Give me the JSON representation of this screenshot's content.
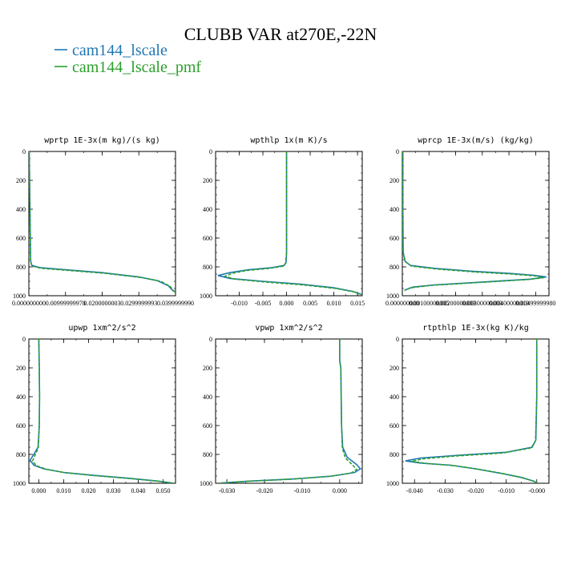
{
  "figure": {
    "title": "CLUBB VAR at270E,-22N",
    "legend": [
      {
        "name": "cam144_lscale",
        "color": "#1f77b4",
        "style": "solid"
      },
      {
        "name": "cam144_lscale_pmf",
        "color": "#2ca02c",
        "style": "dashed"
      }
    ]
  },
  "chart_data": [
    {
      "type": "line",
      "title": "wprtp  1E-3x(m kg)/(s kg)",
      "xlim": [
        0,
        0.04
      ],
      "ylim": [
        0,
        1000
      ],
      "y_inverted": true,
      "xticks": [
        0,
        0.01,
        0.02,
        0.03,
        0.04
      ],
      "xtick_labels": [
        "0.000000000",
        "0.00999999978",
        "0.0200000003",
        "0.0299999993",
        "0.0399999990"
      ],
      "yticks": [
        0,
        200,
        400,
        600,
        800,
        1000
      ],
      "ytick_labels": [
        "0",
        "200",
        "400",
        "600",
        "800",
        "1000"
      ],
      "series": [
        {
          "name": "cam144_lscale",
          "points": [
            [
              0.0001,
              0
            ],
            [
              0.0002,
              200
            ],
            [
              0.0003,
              400
            ],
            [
              0.0004,
              600
            ],
            [
              0.0005,
              760
            ],
            [
              0.0008,
              790
            ],
            [
              0.003,
              805
            ],
            [
              0.01,
              820
            ],
            [
              0.02,
              840
            ],
            [
              0.03,
              870
            ],
            [
              0.035,
              895
            ],
            [
              0.038,
              930
            ],
            [
              0.0395,
              970
            ]
          ]
        },
        {
          "name": "cam144_lscale_pmf",
          "points": [
            [
              0.0001,
              0
            ],
            [
              0.0002,
              200
            ],
            [
              0.0003,
              400
            ],
            [
              0.0004,
              600
            ],
            [
              0.0005,
              765
            ],
            [
              0.0009,
              795
            ],
            [
              0.0035,
              810
            ],
            [
              0.011,
              825
            ],
            [
              0.021,
              845
            ],
            [
              0.031,
              875
            ],
            [
              0.036,
              900
            ],
            [
              0.0385,
              935
            ],
            [
              0.0398,
              975
            ]
          ]
        }
      ]
    },
    {
      "type": "line",
      "title": "wpthlp  1x(m K)/s",
      "xlim": [
        -0.015,
        0.016
      ],
      "ylim": [
        0,
        1000
      ],
      "y_inverted": true,
      "xticks": [
        -0.01,
        -0.005,
        0,
        0.005,
        0.01,
        0.015
      ],
      "xtick_labels": [
        "-0.010",
        "-0.005",
        "0.000",
        "0.005",
        "0.010",
        "0.015"
      ],
      "yticks": [
        0,
        200,
        400,
        600,
        800,
        1000
      ],
      "ytick_labels": [
        "0",
        "200",
        "400",
        "600",
        "800",
        "1000"
      ],
      "series": [
        {
          "name": "cam144_lscale",
          "points": [
            [
              0,
              0
            ],
            [
              0,
              400
            ],
            [
              0,
              700
            ],
            [
              -0.0001,
              770
            ],
            [
              -0.0005,
              790
            ],
            [
              -0.003,
              805
            ],
            [
              -0.008,
              820
            ],
            [
              -0.012,
              840
            ],
            [
              -0.0145,
              860
            ],
            [
              -0.012,
              880
            ],
            [
              -0.005,
              900
            ],
            [
              0.003,
              920
            ],
            [
              0.01,
              945
            ],
            [
              0.014,
              970
            ],
            [
              0.0158,
              990
            ]
          ]
        },
        {
          "name": "cam144_lscale_pmf",
          "points": [
            [
              0,
              0
            ],
            [
              0,
              400
            ],
            [
              0,
              700
            ],
            [
              -0.0002,
              775
            ],
            [
              -0.0007,
              795
            ],
            [
              -0.0035,
              810
            ],
            [
              -0.0085,
              825
            ],
            [
              -0.0115,
              845
            ],
            [
              -0.013,
              865
            ],
            [
              -0.011,
              885
            ],
            [
              -0.0045,
              905
            ],
            [
              0.0035,
              925
            ],
            [
              0.0105,
              950
            ],
            [
              0.0145,
              975
            ],
            [
              0.0158,
              995
            ]
          ]
        }
      ]
    },
    {
      "type": "line",
      "title": "wprcp  1E-3x(m/s) (kg/kg)",
      "xlim": [
        0,
        0.0055
      ],
      "ylim": [
        0,
        1000
      ],
      "y_inverted": true,
      "xticks": [
        0,
        0.001,
        0.002,
        0.003,
        0.004,
        0.005
      ],
      "xtick_labels": [
        "0.000000000",
        "0.00100000005",
        "0.00200000009",
        "0.00300000003",
        "0.00400000019",
        "0.00499999980"
      ],
      "yticks": [
        0,
        200,
        400,
        600,
        800,
        1000
      ],
      "ytick_labels": [
        "0",
        "200",
        "400",
        "600",
        "800",
        "1000"
      ],
      "series": [
        {
          "name": "cam144_lscale",
          "points": [
            [
              2e-05,
              0
            ],
            [
              2e-05,
              400
            ],
            [
              3e-05,
              700
            ],
            [
              0.0001,
              760
            ],
            [
              0.0003,
              790
            ],
            [
              0.0012,
              810
            ],
            [
              0.0026,
              830
            ],
            [
              0.004,
              845
            ],
            [
              0.0049,
              858
            ],
            [
              0.0054,
              870
            ],
            [
              0.0048,
              885
            ],
            [
              0.003,
              905
            ],
            [
              0.0012,
              925
            ],
            [
              0.0004,
              940
            ],
            [
              0.0001,
              960
            ]
          ]
        },
        {
          "name": "cam144_lscale_pmf",
          "points": [
            [
              2e-05,
              0
            ],
            [
              2e-05,
              400
            ],
            [
              3e-05,
              700
            ],
            [
              0.00012,
              765
            ],
            [
              0.00035,
              795
            ],
            [
              0.0013,
              815
            ],
            [
              0.0027,
              835
            ],
            [
              0.0041,
              850
            ],
            [
              0.005,
              863
            ],
            [
              0.0053,
              875
            ],
            [
              0.0047,
              888
            ],
            [
              0.0029,
              908
            ],
            [
              0.0011,
              928
            ],
            [
              0.0003,
              945
            ],
            [
              8e-05,
              965
            ]
          ]
        }
      ]
    },
    {
      "type": "line",
      "title": "upwp  1xm^2/s^2",
      "xlim": [
        -0.004,
        0.055
      ],
      "ylim": [
        0,
        1000
      ],
      "y_inverted": true,
      "xticks": [
        0,
        0.01,
        0.02,
        0.03,
        0.04,
        0.05
      ],
      "xtick_labels": [
        "0.000",
        "0.010",
        "0.020",
        "0.030",
        "0.040",
        "0.050"
      ],
      "yticks": [
        0,
        200,
        400,
        600,
        800,
        1000
      ],
      "ytick_labels": [
        "0",
        "200",
        "400",
        "600",
        "800",
        "1000"
      ],
      "series": [
        {
          "name": "cam144_lscale",
          "points": [
            [
              0,
              0
            ],
            [
              0.0002,
              200
            ],
            [
              0.0003,
              400
            ],
            [
              0.0002,
              600
            ],
            [
              -0.0003,
              750
            ],
            [
              -0.002,
              800
            ],
            [
              -0.0035,
              840
            ],
            [
              -0.002,
              875
            ],
            [
              0.002,
              900
            ],
            [
              0.01,
              925
            ],
            [
              0.022,
              945
            ],
            [
              0.036,
              965
            ],
            [
              0.048,
              985
            ],
            [
              0.0535,
              998
            ]
          ]
        },
        {
          "name": "cam144_lscale_pmf",
          "points": [
            [
              0,
              0
            ],
            [
              0.0002,
              200
            ],
            [
              0.0003,
              400
            ],
            [
              0.0002,
              600
            ],
            [
              -0.0002,
              755
            ],
            [
              -0.0015,
              805
            ],
            [
              -0.0025,
              845
            ],
            [
              -0.001,
              878
            ],
            [
              0.003,
              903
            ],
            [
              0.011,
              928
            ],
            [
              0.023,
              948
            ],
            [
              0.037,
              968
            ],
            [
              0.049,
              987
            ],
            [
              0.054,
              999
            ]
          ]
        }
      ]
    },
    {
      "type": "line",
      "title": "vpwp  1xm^2/s^2",
      "xlim": [
        -0.033,
        0.006
      ],
      "ylim": [
        0,
        1000
      ],
      "y_inverted": true,
      "xticks": [
        -0.03,
        -0.02,
        -0.01,
        0
      ],
      "xtick_labels": [
        "-0.030",
        "-0.020",
        "-0.010",
        "0.000"
      ],
      "yticks": [
        0,
        200,
        400,
        600,
        800,
        1000
      ],
      "ytick_labels": [
        "0",
        "200",
        "400",
        "600",
        "800",
        "1000"
      ],
      "series": [
        {
          "name": "cam144_lscale",
          "points": [
            [
              0,
              0
            ],
            [
              0,
              150
            ],
            [
              0.0003,
              200
            ],
            [
              0.0004,
              400
            ],
            [
              0.0005,
              600
            ],
            [
              0.0008,
              750
            ],
            [
              0.002,
              820
            ],
            [
              0.0045,
              870
            ],
            [
              0.0055,
              900
            ],
            [
              0.004,
              925
            ],
            [
              -0.002,
              950
            ],
            [
              -0.012,
              970
            ],
            [
              -0.024,
              985
            ],
            [
              -0.0315,
              998
            ]
          ]
        },
        {
          "name": "cam144_lscale_pmf",
          "points": [
            [
              0,
              0
            ],
            [
              0,
              150
            ],
            [
              0.0003,
              200
            ],
            [
              0.0004,
              400
            ],
            [
              0.0005,
              600
            ],
            [
              0.0007,
              755
            ],
            [
              0.0015,
              825
            ],
            [
              0.0035,
              875
            ],
            [
              0.0045,
              905
            ],
            [
              0.003,
              930
            ],
            [
              -0.003,
              953
            ],
            [
              -0.013,
              972
            ],
            [
              -0.025,
              987
            ],
            [
              -0.032,
              999
            ]
          ]
        }
      ]
    },
    {
      "type": "line",
      "title": "rtpthlp  1E-3x(kg K)/kg",
      "xlim": [
        -0.044,
        0.004
      ],
      "ylim": [
        0,
        1000
      ],
      "y_inverted": true,
      "xticks": [
        -0.04,
        -0.03,
        -0.02,
        -0.01,
        0
      ],
      "xtick_labels": [
        "-0.040",
        "-0.030",
        "-0.020",
        "-0.010",
        "-0.000"
      ],
      "yticks": [
        0,
        200,
        400,
        600,
        800,
        1000
      ],
      "ytick_labels": [
        "0",
        "200",
        "400",
        "600",
        "800",
        "1000"
      ],
      "series": [
        {
          "name": "cam144_lscale",
          "points": [
            [
              0,
              0
            ],
            [
              0,
              400
            ],
            [
              -0.0003,
              700
            ],
            [
              -0.0015,
              750
            ],
            [
              -0.01,
              785
            ],
            [
              -0.025,
              805
            ],
            [
              -0.038,
              825
            ],
            [
              -0.043,
              845
            ],
            [
              -0.038,
              860
            ],
            [
              -0.028,
              875
            ],
            [
              -0.02,
              900
            ],
            [
              -0.012,
              930
            ],
            [
              -0.005,
              960
            ],
            [
              -0.001,
              985
            ],
            [
              0,
              998
            ]
          ]
        },
        {
          "name": "cam144_lscale_pmf",
          "points": [
            [
              0,
              0
            ],
            [
              0,
              400
            ],
            [
              -0.0004,
              705
            ],
            [
              -0.0018,
              755
            ],
            [
              -0.011,
              790
            ],
            [
              -0.026,
              810
            ],
            [
              -0.037,
              830
            ],
            [
              -0.041,
              848
            ],
            [
              -0.036,
              863
            ],
            [
              -0.027,
              878
            ],
            [
              -0.019,
              903
            ],
            [
              -0.011,
              933
            ],
            [
              -0.0045,
              962
            ],
            [
              -0.0008,
              987
            ],
            [
              0,
              999
            ]
          ]
        }
      ]
    }
  ]
}
